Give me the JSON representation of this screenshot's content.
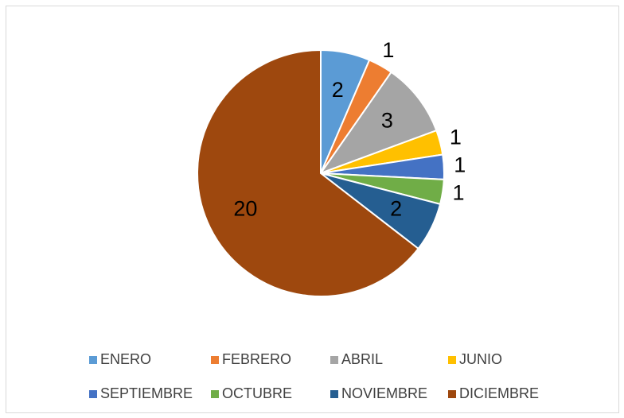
{
  "chart_data": {
    "type": "pie",
    "categories": [
      "ENERO",
      "FEBRERO",
      "ABRIL",
      "JUNIO",
      "SEPTIEMBRE",
      "OCTUBRE",
      "NOVIEMBRE",
      "DICIEMBRE"
    ],
    "values": [
      2,
      1,
      3,
      1,
      1,
      1,
      2,
      20
    ],
    "colors": [
      "#5b9bd5",
      "#ed7d31",
      "#a5a5a5",
      "#ffc000",
      "#4472c4",
      "#70ad47",
      "#255e91",
      "#9e480e"
    ],
    "legend": "bottom"
  }
}
